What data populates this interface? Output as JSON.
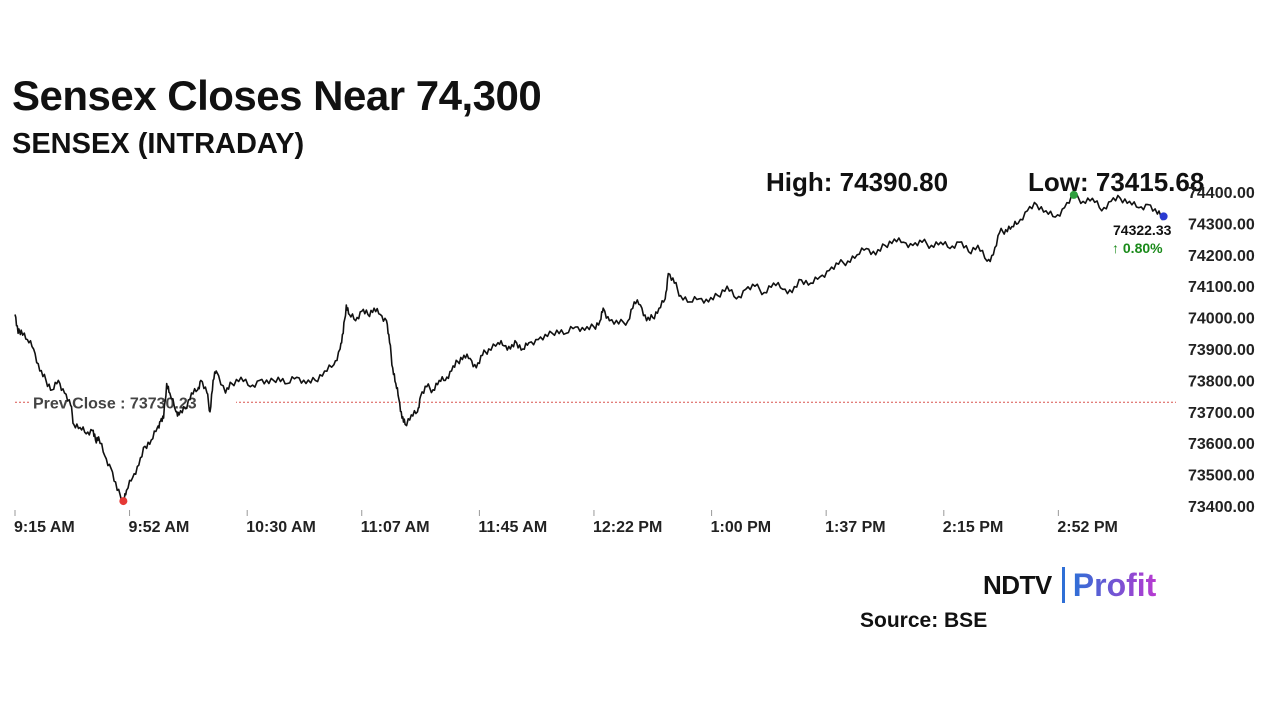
{
  "header": {
    "title": "Sensex Closes Near 74,300",
    "subtitle": "SENSEX (INTRADAY)"
  },
  "stats": {
    "high": "High: 74390.80",
    "low": "Low: 73415.68"
  },
  "footer": {
    "logo_left": "NDTV",
    "logo_right": "Profit",
    "source": "Source: BSE"
  },
  "colors": {
    "line": "#111111",
    "prev_close_line": "#d9534f",
    "low_marker": "#e53935",
    "high_marker": "#2e9e3e",
    "last_marker": "#2a3ad1",
    "change_positive": "#1a8a1a"
  },
  "chart_data": {
    "type": "line",
    "title": "SENSEX (INTRADAY)",
    "xlabel": "",
    "ylabel": "",
    "ylim": [
      73400,
      74400
    ],
    "grid": false,
    "y_ticks": [
      "74400.00",
      "74300.00",
      "74200.00",
      "74100.00",
      "74000.00",
      "73900.00",
      "73800.00",
      "73700.00",
      "73600.00",
      "73500.00",
      "73400.00"
    ],
    "x_ticks": [
      "9:15 AM",
      "9:52 AM",
      "10:30 AM",
      "11:07 AM",
      "11:45 AM",
      "12:22 PM",
      "1:00 PM",
      "1:37 PM",
      "2:15 PM",
      "2:52 PM"
    ],
    "x_range": [
      "9:15 AM",
      "3:30 PM"
    ],
    "prev_close": {
      "label": "Prev Close : 73730.23",
      "value": 73730.23
    },
    "high": {
      "value": 74390.8,
      "time": "2:57 PM"
    },
    "low": {
      "value": 73415.68,
      "time": "9:50 AM"
    },
    "last": {
      "value": 74322.33,
      "label": "74322.33",
      "change": "↑ 0.80%"
    },
    "series": [
      {
        "points": [
          [
            "9:15 AM",
            74010
          ],
          [
            "9:16 AM",
            73950
          ],
          [
            "9:17 AM",
            73960
          ],
          [
            "9:19 AM",
            73930
          ],
          [
            "9:21 AM",
            73900
          ],
          [
            "9:23 AM",
            73830
          ],
          [
            "9:25 AM",
            73800
          ],
          [
            "9:27 AM",
            73770
          ],
          [
            "9:29 AM",
            73800
          ],
          [
            "9:31 AM",
            73760
          ],
          [
            "9:33 AM",
            73720
          ],
          [
            "9:34 AM",
            73660
          ],
          [
            "9:36 AM",
            73650
          ],
          [
            "9:38 AM",
            73630
          ],
          [
            "9:40 AM",
            73640
          ],
          [
            "9:41 AM",
            73610
          ],
          [
            "9:42 AM",
            73620
          ],
          [
            "9:44 AM",
            73560
          ],
          [
            "9:46 AM",
            73520
          ],
          [
            "9:48 AM",
            73450
          ],
          [
            "9:50 AM",
            73416
          ],
          [
            "9:51 AM",
            73450
          ],
          [
            "9:53 AM",
            73490
          ],
          [
            "9:55 AM",
            73530
          ],
          [
            "9:57 AM",
            73590
          ],
          [
            "9:59 AM",
            73610
          ],
          [
            "10:01 AM",
            73650
          ],
          [
            "10:02 AM",
            73670
          ],
          [
            "10:03 AM",
            73680
          ],
          [
            "10:04 AM",
            73790
          ],
          [
            "10:05 AM",
            73760
          ],
          [
            "10:07 AM",
            73700
          ],
          [
            "10:08 AM",
            73690
          ],
          [
            "10:10 AM",
            73710
          ],
          [
            "10:12 AM",
            73760
          ],
          [
            "10:14 AM",
            73770
          ],
          [
            "10:15 AM",
            73800
          ],
          [
            "10:17 AM",
            73760
          ],
          [
            "10:18 AM",
            73700
          ],
          [
            "10:19 AM",
            73800
          ],
          [
            "10:20 AM",
            73830
          ],
          [
            "10:23 AM",
            73760
          ],
          [
            "10:25 AM",
            73790
          ],
          [
            "10:28 AM",
            73810
          ],
          [
            "10:31 AM",
            73780
          ],
          [
            "10:34 AM",
            73800
          ],
          [
            "10:37 AM",
            73790
          ],
          [
            "10:40 AM",
            73810
          ],
          [
            "10:43 AM",
            73790
          ],
          [
            "10:46 AM",
            73810
          ],
          [
            "10:49 AM",
            73790
          ],
          [
            "10:52 AM",
            73800
          ],
          [
            "10:55 AM",
            73830
          ],
          [
            "10:58 AM",
            73850
          ],
          [
            "11:00 AM",
            73900
          ],
          [
            "11:01 AM",
            73950
          ],
          [
            "11:02 AM",
            74040
          ],
          [
            "11:03 AM",
            74010
          ],
          [
            "11:05 AM",
            73990
          ],
          [
            "11:07 AM",
            74020
          ],
          [
            "11:09 AM",
            74010
          ],
          [
            "11:11 AM",
            74030
          ],
          [
            "11:13 AM",
            74010
          ],
          [
            "11:15 AM",
            73990
          ],
          [
            "11:16 AM",
            73920
          ],
          [
            "11:17 AM",
            73840
          ],
          [
            "11:18 AM",
            73790
          ],
          [
            "11:19 AM",
            73740
          ],
          [
            "11:20 AM",
            73680
          ],
          [
            "11:21 AM",
            73660
          ],
          [
            "11:23 AM",
            73690
          ],
          [
            "11:25 AM",
            73700
          ],
          [
            "11:26 AM",
            73750
          ],
          [
            "11:28 AM",
            73780
          ],
          [
            "11:30 AM",
            73770
          ],
          [
            "11:32 AM",
            73800
          ],
          [
            "11:34 AM",
            73800
          ],
          [
            "11:36 AM",
            73830
          ],
          [
            "11:38 AM",
            73860
          ],
          [
            "11:40 AM",
            73880
          ],
          [
            "11:42 AM",
            73870
          ],
          [
            "11:44 AM",
            73840
          ],
          [
            "11:46 AM",
            73880
          ],
          [
            "11:48 AM",
            73900
          ],
          [
            "11:51 AM",
            73920
          ],
          [
            "11:53 AM",
            73910
          ],
          [
            "11:55 AM",
            73900
          ],
          [
            "11:57 AM",
            73920
          ],
          [
            "11:59 AM",
            73900
          ],
          [
            "12:01 PM",
            73920
          ],
          [
            "12:04 PM",
            73930
          ],
          [
            "12:07 PM",
            73940
          ],
          [
            "12:10 PM",
            73960
          ],
          [
            "12:13 PM",
            73950
          ],
          [
            "12:16 PM",
            73970
          ],
          [
            "12:19 PM",
            73960
          ],
          [
            "12:22 PM",
            73970
          ],
          [
            "12:24 PM",
            73990
          ],
          [
            "12:25 PM",
            74030
          ],
          [
            "12:27 PM",
            73990
          ],
          [
            "12:30 PM",
            73980
          ],
          [
            "12:33 PM",
            73990
          ],
          [
            "12:35 PM",
            74050
          ],
          [
            "12:37 PM",
            74040
          ],
          [
            "12:39 PM",
            73990
          ],
          [
            "12:41 PM",
            74000
          ],
          [
            "12:43 PM",
            74030
          ],
          [
            "12:45 PM",
            74060
          ],
          [
            "12:46 PM",
            74140
          ],
          [
            "12:48 PM",
            74110
          ],
          [
            "12:50 PM",
            74070
          ],
          [
            "12:53 PM",
            74050
          ],
          [
            "12:56 PM",
            74060
          ],
          [
            "12:59 PM",
            74050
          ],
          [
            "1:02 PM",
            74070
          ],
          [
            "1:05 PM",
            74100
          ],
          [
            "1:08 PM",
            74060
          ],
          [
            "1:11 PM",
            74090
          ],
          [
            "1:14 PM",
            74100
          ],
          [
            "1:17 PM",
            74080
          ],
          [
            "1:20 PM",
            74110
          ],
          [
            "1:23 PM",
            74090
          ],
          [
            "1:26 PM",
            74080
          ],
          [
            "1:29 PM",
            74120
          ],
          [
            "1:32 PM",
            74110
          ],
          [
            "1:35 PM",
            74130
          ],
          [
            "1:38 PM",
            74150
          ],
          [
            "1:41 PM",
            74170
          ],
          [
            "1:44 PM",
            74180
          ],
          [
            "1:47 PM",
            74200
          ],
          [
            "1:50 PM",
            74220
          ],
          [
            "1:53 PM",
            74200
          ],
          [
            "1:56 PM",
            74230
          ],
          [
            "1:59 PM",
            74250
          ],
          [
            "2:02 PM",
            74240
          ],
          [
            "2:05 PM",
            74230
          ],
          [
            "2:08 PM",
            74240
          ],
          [
            "2:11 PM",
            74230
          ],
          [
            "2:14 PM",
            74240
          ],
          [
            "2:17 PM",
            74220
          ],
          [
            "2:20 PM",
            74240
          ],
          [
            "2:23 PM",
            74210
          ],
          [
            "2:26 PM",
            74230
          ],
          [
            "2:29 PM",
            74180
          ],
          [
            "2:31 PM",
            74200
          ],
          [
            "2:33 PM",
            74270
          ],
          [
            "2:35 PM",
            74280
          ],
          [
            "2:37 PM",
            74290
          ],
          [
            "2:39 PM",
            74300
          ],
          [
            "2:42 PM",
            74340
          ],
          [
            "2:45 PM",
            74360
          ],
          [
            "2:48 PM",
            74340
          ],
          [
            "2:51 PM",
            74320
          ],
          [
            "2:54 PM",
            74350
          ],
          [
            "2:57 PM",
            74391
          ],
          [
            "3:00 PM",
            74370
          ],
          [
            "3:03 PM",
            74380
          ],
          [
            "3:06 PM",
            74340
          ],
          [
            "3:09 PM",
            74370
          ],
          [
            "3:12 PM",
            74380
          ],
          [
            "3:15 PM",
            74370
          ],
          [
            "3:18 PM",
            74350
          ],
          [
            "3:21 PM",
            74360
          ],
          [
            "3:24 PM",
            74330
          ],
          [
            "3:26 PM",
            74322
          ]
        ]
      }
    ]
  }
}
